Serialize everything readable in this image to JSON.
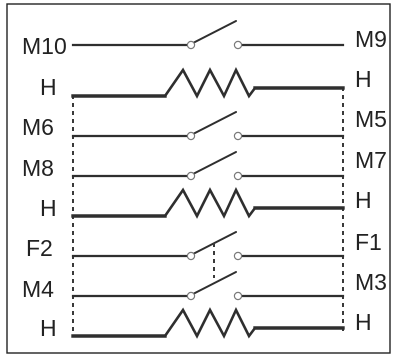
{
  "left_labels": [
    "M10",
    "H",
    "M6",
    "M8",
    "H",
    "F2",
    "M4",
    "H"
  ],
  "right_labels": [
    "M9",
    "H",
    "M5",
    "M7",
    "H",
    "F1",
    "M3",
    "H"
  ],
  "rows": [
    {
      "kind": "switch",
      "left": "M10",
      "right": "M9"
    },
    {
      "kind": "resistor",
      "left": "H",
      "right": "H"
    },
    {
      "kind": "switch",
      "left": "M6",
      "right": "M5"
    },
    {
      "kind": "switch",
      "left": "M8",
      "right": "M7"
    },
    {
      "kind": "resistor",
      "left": "H",
      "right": "H"
    },
    {
      "kind": "switch",
      "left": "F2",
      "right": "F1",
      "linked_below": true
    },
    {
      "kind": "switch",
      "left": "M4",
      "right": "M3"
    },
    {
      "kind": "resistor",
      "left": "H",
      "right": "H"
    }
  ],
  "colors": {
    "line": "#2f2f2f",
    "contact_stroke": "#7a7a7a",
    "frame": "#222222",
    "background": "#ffffff"
  }
}
